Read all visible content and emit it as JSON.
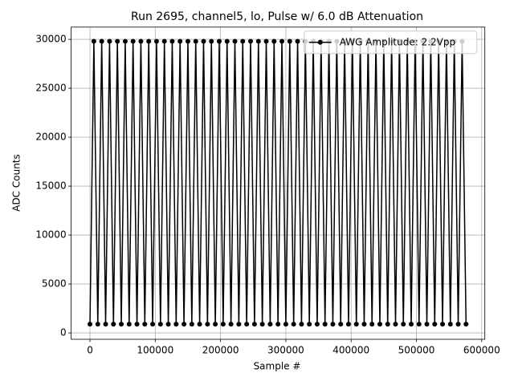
{
  "chart_data": {
    "type": "line",
    "title": "Run 2695, channel5, lo, Pulse w/ 6.0 dB Attenuation",
    "x_label": "Sample #",
    "y_label": "ADC Counts",
    "xlim": [
      -28800,
      604800
    ],
    "ylim": [
      -650,
      31250
    ],
    "xticks": [
      0,
      100000,
      200000,
      300000,
      400000,
      500000,
      600000
    ],
    "yticks": [
      0,
      5000,
      10000,
      15000,
      20000,
      25000,
      30000
    ],
    "grid": true,
    "legend": "upper right",
    "series": [
      {
        "name": "AWG Amplitude: 2.2Vpp",
        "color": "#000000",
        "x": [
          0,
          6000,
          12000,
          18000,
          24000,
          30000,
          36000,
          42000,
          48000,
          54000,
          60000,
          66000,
          72000,
          78000,
          84000,
          90000,
          96000,
          102000,
          108000,
          114000,
          120000,
          126000,
          132000,
          138000,
          144000,
          150000,
          156000,
          162000,
          168000,
          174000,
          180000,
          186000,
          192000,
          198000,
          204000,
          210000,
          216000,
          222000,
          228000,
          234000,
          240000,
          246000,
          252000,
          258000,
          264000,
          270000,
          276000,
          282000,
          288000,
          294000,
          300000,
          306000,
          312000,
          318000,
          324000,
          330000,
          336000,
          342000,
          348000,
          354000,
          360000,
          366000,
          372000,
          378000,
          384000,
          390000,
          396000,
          402000,
          408000,
          414000,
          420000,
          426000,
          432000,
          438000,
          444000,
          450000,
          456000,
          462000,
          468000,
          474000,
          480000,
          486000,
          492000,
          498000,
          504000,
          510000,
          516000,
          522000,
          528000,
          534000,
          540000,
          546000,
          552000,
          558000,
          564000,
          570000,
          576000
        ],
        "values": [
          900,
          29800,
          900,
          29800,
          900,
          29800,
          900,
          29800,
          900,
          29800,
          900,
          29800,
          900,
          29800,
          900,
          29800,
          900,
          29800,
          900,
          29800,
          900,
          29800,
          900,
          29800,
          900,
          29800,
          900,
          29800,
          900,
          29800,
          900,
          29800,
          900,
          29800,
          900,
          29800,
          900,
          29800,
          900,
          29800,
          900,
          29800,
          900,
          29800,
          900,
          29800,
          900,
          29800,
          900,
          29800,
          900,
          29800,
          900,
          29800,
          900,
          29800,
          900,
          29800,
          900,
          29800,
          900,
          29800,
          900,
          29800,
          900,
          29800,
          900,
          29800,
          900,
          29800,
          900,
          29800,
          900,
          29800,
          900,
          29800,
          900,
          29800,
          900,
          29800,
          900,
          29800,
          900,
          29800,
          900,
          29800,
          900,
          29800,
          900,
          29800,
          900,
          29800,
          900,
          29800,
          900,
          29800,
          900
        ]
      }
    ]
  }
}
